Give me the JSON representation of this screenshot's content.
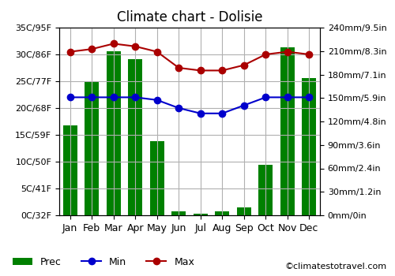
{
  "chart_data": {
    "type": "bar",
    "title": "Climate chart - Dolisie",
    "categories": [
      "Jan",
      "Feb",
      "Mar",
      "Apr",
      "May",
      "Jun",
      "Jul",
      "Aug",
      "Sep",
      "Oct",
      "Nov",
      "Dec"
    ],
    "series": [
      {
        "name": "Prec",
        "type": "bar",
        "axis": "y2",
        "color": "#008000",
        "values": [
          115,
          170,
          210,
          200,
          95,
          5,
          2,
          5,
          10,
          65,
          215,
          175
        ]
      },
      {
        "name": "Min",
        "type": "line",
        "color": "#0000cc",
        "marker": "o",
        "values": [
          22,
          22,
          22,
          22,
          21.5,
          20,
          19,
          19,
          20.5,
          22,
          22,
          22
        ]
      },
      {
        "name": "Max",
        "type": "line",
        "color": "#aa0000",
        "marker": "o",
        "values": [
          30.5,
          31,
          32,
          31.5,
          30.5,
          27.5,
          27,
          27,
          28,
          30,
          30.5,
          30
        ]
      }
    ],
    "ylim": [
      0,
      35
    ],
    "yticks": [
      {
        "value": 0,
        "label": "0C/32F"
      },
      {
        "value": 5,
        "label": "5C/41F"
      },
      {
        "value": 10,
        "label": "10C/50F"
      },
      {
        "value": 15,
        "label": "15C/59F"
      },
      {
        "value": 20,
        "label": "20C/68F"
      },
      {
        "value": 25,
        "label": "25C/77F"
      },
      {
        "value": 30,
        "label": "30C/86F"
      },
      {
        "value": 35,
        "label": "35C/95F"
      }
    ],
    "y2lim": [
      0,
      240
    ],
    "y2ticks": [
      {
        "value": 0,
        "label": "0mm/0in"
      },
      {
        "value": 30,
        "label": "30mm/1.2in"
      },
      {
        "value": 60,
        "label": "60mm/2.4in"
      },
      {
        "value": 90,
        "label": "90mm/3.6in"
      },
      {
        "value": 120,
        "label": "120mm/4.8in"
      },
      {
        "value": 150,
        "label": "150mm/5.9in"
      },
      {
        "value": 180,
        "label": "180mm/7.1in"
      },
      {
        "value": 210,
        "label": "210mm/8.3in"
      },
      {
        "value": 240,
        "label": "240mm/9.5in"
      }
    ],
    "grid": true,
    "legend": "lower left",
    "annotations": [
      {
        "text": "©climatestotravel.com"
      }
    ]
  }
}
